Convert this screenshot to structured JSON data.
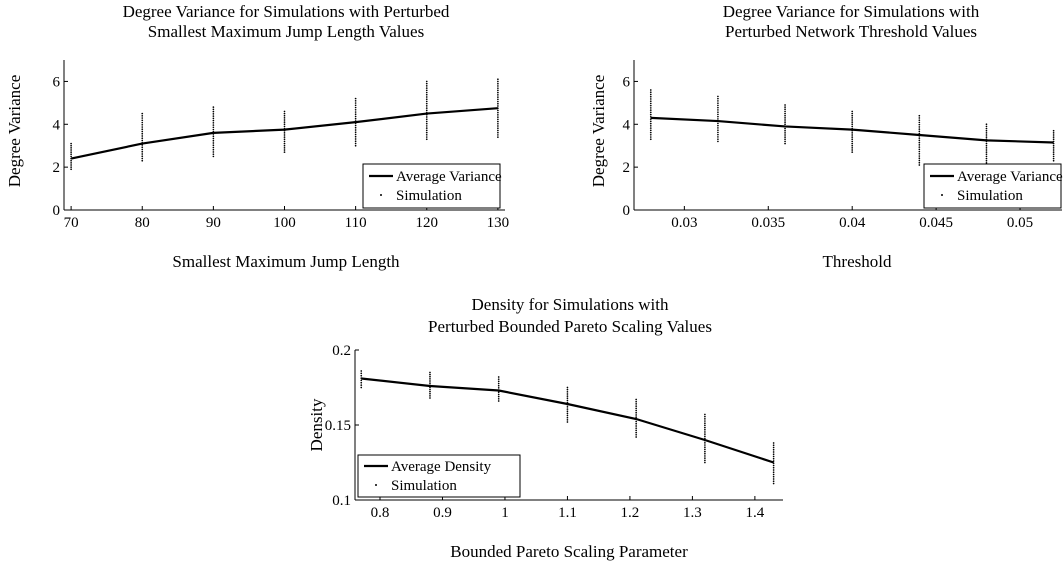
{
  "chart_data": [
    {
      "type": "line",
      "title_lines": [
        "Degree Variance for Simulations with Perturbed",
        "Smallest Maximum Jump Length Values"
      ],
      "xlabel": "Smallest Maximum Jump Length",
      "ylabel": "Degree Variance",
      "xlim": [
        69,
        131
      ],
      "ylim": [
        0,
        7
      ],
      "xticks": [
        70,
        80,
        90,
        100,
        110,
        120,
        130
      ],
      "xtick_labels": [
        "70",
        "80",
        "90",
        "100",
        "110",
        "120",
        "130"
      ],
      "yticks": [
        0,
        2,
        4,
        6
      ],
      "ytick_labels": [
        "0",
        "2",
        "4",
        "6"
      ],
      "legend_position": "bottom-right",
      "grid": false,
      "series": [
        {
          "name": "Average Variance",
          "style": "line",
          "x": [
            70,
            80,
            90,
            100,
            110,
            120,
            130
          ],
          "y": [
            2.4,
            3.1,
            3.6,
            3.75,
            4.1,
            4.5,
            4.75
          ]
        },
        {
          "name": "Simulation",
          "style": "dots",
          "x": [
            70,
            80,
            90,
            100,
            110,
            120,
            130
          ],
          "y_ranges": [
            [
              1.9,
              3.1
            ],
            [
              2.3,
              4.5
            ],
            [
              2.5,
              4.8
            ],
            [
              2.7,
              4.6
            ],
            [
              3.0,
              5.2
            ],
            [
              3.3,
              6.0
            ],
            [
              3.4,
              6.1
            ]
          ]
        }
      ]
    },
    {
      "type": "line",
      "title_lines": [
        "Degree Variance for Simulations with",
        "Perturbed Network Threshold Values"
      ],
      "xlabel": "Threshold",
      "ylabel": "Degree Variance",
      "xlim": [
        0.027,
        0.0525
      ],
      "ylim": [
        0,
        7
      ],
      "xticks": [
        0.03,
        0.035,
        0.04,
        0.045,
        0.05
      ],
      "xtick_labels": [
        "0.03",
        "0.035",
        "0.04",
        "0.045",
        "0.05"
      ],
      "yticks": [
        0,
        2,
        4,
        6
      ],
      "ytick_labels": [
        "0",
        "2",
        "4",
        "6"
      ],
      "legend_position": "bottom-right",
      "grid": false,
      "series": [
        {
          "name": "Average Variance",
          "style": "line",
          "x": [
            0.028,
            0.032,
            0.036,
            0.04,
            0.044,
            0.048,
            0.052
          ],
          "y": [
            4.3,
            4.15,
            3.9,
            3.75,
            3.5,
            3.25,
            3.15
          ]
        },
        {
          "name": "Simulation",
          "style": "dots",
          "x": [
            0.028,
            0.032,
            0.036,
            0.04,
            0.044,
            0.048,
            0.052
          ],
          "y_ranges": [
            [
              3.3,
              5.6
            ],
            [
              3.2,
              5.3
            ],
            [
              3.1,
              4.9
            ],
            [
              2.7,
              4.6
            ],
            [
              2.1,
              4.4
            ],
            [
              2.2,
              4.0
            ],
            [
              2.3,
              3.7
            ]
          ]
        }
      ]
    },
    {
      "type": "line",
      "title_lines": [
        "Density for Simulations with",
        "Perturbed Bounded Pareto Scaling Values"
      ],
      "xlabel": "Bounded Pareto Scaling Parameter",
      "ylabel": "Density",
      "xlim": [
        0.76,
        1.445
      ],
      "ylim": [
        0.1,
        0.2
      ],
      "xticks": [
        0.8,
        0.9,
        1.0,
        1.1,
        1.2,
        1.3,
        1.4
      ],
      "xtick_labels": [
        "0.8",
        "0.9",
        "1",
        "1.1",
        "1.2",
        "1.3",
        "1.4"
      ],
      "yticks": [
        0.1,
        0.15,
        0.2
      ],
      "ytick_labels": [
        "0.1",
        "0.15",
        "0.2"
      ],
      "legend_position": "bottom-left",
      "grid": false,
      "series": [
        {
          "name": "Average Density",
          "style": "line",
          "x": [
            0.77,
            0.88,
            0.99,
            1.1,
            1.21,
            1.32,
            1.43
          ],
          "y": [
            0.181,
            0.176,
            0.173,
            0.164,
            0.154,
            0.14,
            0.125
          ]
        },
        {
          "name": "Simulation",
          "style": "dots",
          "x": [
            0.77,
            0.88,
            0.99,
            1.1,
            1.21,
            1.32,
            1.43
          ],
          "y_ranges": [
            [
              0.175,
              0.186
            ],
            [
              0.168,
              0.185
            ],
            [
              0.166,
              0.182
            ],
            [
              0.152,
              0.175
            ],
            [
              0.142,
              0.167
            ],
            [
              0.125,
              0.157
            ],
            [
              0.111,
              0.138
            ]
          ]
        }
      ]
    }
  ]
}
